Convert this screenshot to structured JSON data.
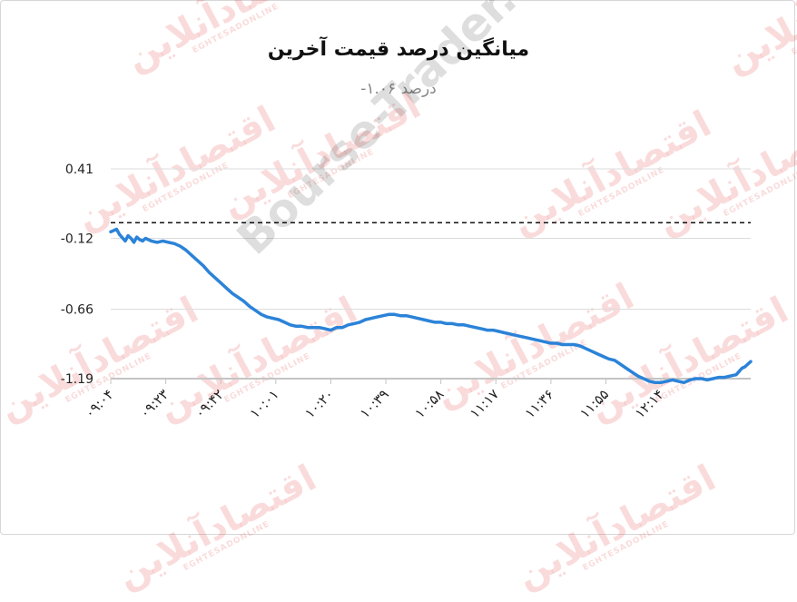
{
  "watermarks": {
    "main": "Bourse-Trader.ir",
    "stamp_text": "اقتصادآنلاین",
    "stamp_sub": "EGHTESADONLINE"
  },
  "chart_data": {
    "type": "line",
    "title": "میانگین درصد قیمت آخرین",
    "subtitle": "درصد ۱.۰۶-",
    "xlabel": "",
    "ylabel": "",
    "y_ticks": [
      0.41,
      -0.12,
      -0.66,
      -1.19
    ],
    "y_tick_labels": [
      "0.41",
      "-0.12",
      "-0.66",
      "-1.19"
    ],
    "ylim": [
      -1.19,
      0.41
    ],
    "x_tick_labels": [
      "۰۹:۰۴",
      "۰۹:۲۳",
      "۰۹:۴۲",
      "۱۰:۰۱",
      "۱۰:۲۰",
      "۱۰:۳۹",
      "۱۰:۵۸",
      "۱۱:۱۷",
      "۱۱:۳۶",
      "۱۱:۵۵",
      "۱۲:۱۴"
    ],
    "x_ticks_minutes": [
      0,
      19,
      38,
      57,
      76,
      95,
      114,
      133,
      152,
      171,
      190
    ],
    "xlim_minutes": [
      0,
      221
    ],
    "reference_line": {
      "value": 0.0,
      "style": "dashed"
    },
    "grid": "horizontal",
    "line_color": "#2b83d8",
    "series": [
      {
        "x": [
          0,
          1,
          2,
          3,
          5,
          6,
          7,
          8,
          9,
          10,
          11,
          12,
          14,
          16,
          18,
          20,
          22,
          24,
          26,
          28,
          30,
          32,
          34,
          36,
          38,
          40,
          42,
          44,
          46,
          48,
          50,
          52,
          54,
          56,
          58,
          60,
          62,
          64,
          66,
          68,
          70,
          72,
          74,
          76,
          78,
          80,
          82,
          84,
          86,
          88,
          90,
          92,
          94,
          96,
          98,
          100,
          102,
          104,
          106,
          108,
          110,
          112,
          114,
          116,
          118,
          120,
          122,
          124,
          126,
          128,
          130,
          132,
          134,
          136,
          138,
          140,
          142,
          144,
          146,
          148,
          150,
          152,
          154,
          156,
          158,
          160,
          162,
          164,
          166,
          168,
          170,
          172,
          174,
          176,
          178,
          180,
          182,
          184,
          186,
          188,
          190,
          192,
          194,
          196,
          198,
          200,
          202,
          204,
          206,
          208,
          210,
          212,
          214,
          216,
          218,
          219,
          220,
          221
        ],
        "values": [
          -0.07,
          -0.06,
          -0.05,
          -0.09,
          -0.14,
          -0.1,
          -0.12,
          -0.15,
          -0.11,
          -0.13,
          -0.14,
          -0.12,
          -0.14,
          -0.15,
          -0.14,
          -0.15,
          -0.16,
          -0.18,
          -0.21,
          -0.25,
          -0.29,
          -0.33,
          -0.38,
          -0.42,
          -0.46,
          -0.5,
          -0.54,
          -0.57,
          -0.6,
          -0.64,
          -0.67,
          -0.7,
          -0.72,
          -0.73,
          -0.74,
          -0.76,
          -0.78,
          -0.79,
          -0.79,
          -0.8,
          -0.8,
          -0.8,
          -0.81,
          -0.82,
          -0.8,
          -0.8,
          -0.78,
          -0.77,
          -0.76,
          -0.74,
          -0.73,
          -0.72,
          -0.71,
          -0.7,
          -0.7,
          -0.71,
          -0.71,
          -0.72,
          -0.73,
          -0.74,
          -0.75,
          -0.76,
          -0.76,
          -0.77,
          -0.77,
          -0.78,
          -0.78,
          -0.79,
          -0.8,
          -0.81,
          -0.82,
          -0.82,
          -0.83,
          -0.84,
          -0.85,
          -0.86,
          -0.87,
          -0.88,
          -0.89,
          -0.9,
          -0.91,
          -0.92,
          -0.92,
          -0.93,
          -0.93,
          -0.93,
          -0.94,
          -0.96,
          -0.98,
          -1.0,
          -1.02,
          -1.04,
          -1.05,
          -1.08,
          -1.11,
          -1.14,
          -1.17,
          -1.19,
          -1.21,
          -1.22,
          -1.22,
          -1.21,
          -1.2,
          -1.21,
          -1.22,
          -1.2,
          -1.19,
          -1.19,
          -1.2,
          -1.19,
          -1.18,
          -1.18,
          -1.17,
          -1.16,
          -1.11,
          -1.1,
          -1.08,
          -1.06
        ]
      }
    ]
  }
}
